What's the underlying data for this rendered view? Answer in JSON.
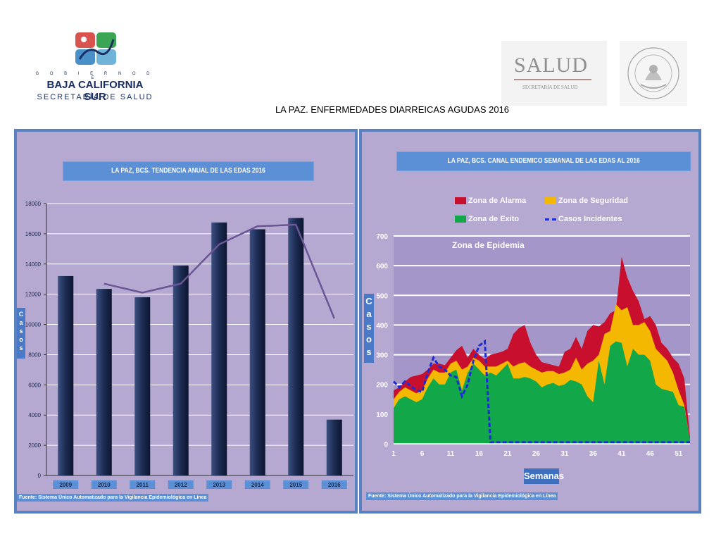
{
  "header": {
    "left_logo": {
      "gobierno": "G O B I E R N O   D E",
      "state": "BAJA CALIFORNIA SUR",
      "secretaria": "SECRETARÍA DE SALUD"
    },
    "right_logo": {
      "salud": "SALUD",
      "secretaria": "SECRETARÍA DE SALUD",
      "seal": "ESTADOS UNIDOS MEXICANOS"
    },
    "page_title": "LA PAZ. ENFERMEDADES DIARREICAS  AGUDAS 2016"
  },
  "colors": {
    "panel_bg": "#b5a8d1",
    "panel_border": "#5a82c0",
    "bar": "#1c2b52",
    "trend_line": "#6a5596",
    "alarma": "#c8102e",
    "seguridad": "#f4b800",
    "exito": "#12a84a",
    "incidentes": "#1d2bd6",
    "label_box": "#5b8fd6"
  },
  "chart_data": [
    {
      "type": "bar",
      "title": "LA PAZ,  BCS. TENDENCIA ANUAL DE LAS EDAS  2016",
      "ylabel": "C a s o s",
      "ylim": [
        0,
        18000
      ],
      "yticks": [
        "0",
        "2000",
        "4000",
        "6000",
        "8000",
        "10000",
        "12000",
        "14000",
        "16000",
        "18000"
      ],
      "categories": [
        "2009",
        "2010",
        "2011",
        "2012",
        "2013",
        "2014",
        "2015",
        "2016"
      ],
      "values": [
        13200,
        12350,
        11800,
        13900,
        16750,
        16300,
        17050,
        3700
      ],
      "trend": {
        "x": [
          "2010",
          "2011",
          "2012",
          "2013",
          "2014",
          "2015",
          "2016"
        ],
        "values": [
          12700,
          12100,
          12700,
          15300,
          16500,
          16600,
          10400
        ]
      },
      "source": "Fuente: Sistema Único Automatizado  para la Vigilancia Epidemiológica en Línea"
    },
    {
      "type": "area",
      "title": "LA PAZ, BCS. CANAL ENDEMICO SEMANAL DE LAS EDAS  AL 2016",
      "ylabel": "C a s o s",
      "xlabel": "Semanas",
      "ylim": [
        0,
        700
      ],
      "yticks": [
        "0",
        "100",
        "200",
        "300",
        "400",
        "500",
        "600",
        "700"
      ],
      "xticks": [
        "1",
        "6",
        "11",
        "16",
        "21",
        "26",
        "31",
        "36",
        "41",
        "46",
        "51"
      ],
      "zone_label": "Zona de Epidemia",
      "legend": [
        "Zona de Alarma",
        "Zona de Seguridad",
        "Zona de Exito",
        "Casos Incidentes"
      ],
      "weeks": [
        1,
        2,
        3,
        4,
        5,
        6,
        7,
        8,
        9,
        10,
        11,
        12,
        13,
        14,
        15,
        16,
        17,
        18,
        19,
        20,
        21,
        22,
        23,
        24,
        25,
        26,
        27,
        28,
        29,
        30,
        31,
        32,
        33,
        34,
        35,
        36,
        37,
        38,
        39,
        40,
        41,
        42,
        43,
        44,
        45,
        46,
        47,
        48,
        49,
        50,
        51,
        52,
        53
      ],
      "series": [
        {
          "name": "Zona de Exito",
          "values": [
            120,
            150,
            160,
            150,
            140,
            150,
            190,
            220,
            200,
            200,
            240,
            250,
            180,
            240,
            270,
            250,
            230,
            240,
            230,
            250,
            270,
            220,
            220,
            225,
            220,
            210,
            190,
            200,
            205,
            195,
            200,
            215,
            210,
            200,
            160,
            140,
            280,
            200,
            330,
            345,
            340,
            260,
            320,
            300,
            300,
            280,
            200,
            185,
            180,
            175,
            130,
            125,
            10
          ]
        },
        {
          "name": "Zona de Seguridad",
          "values": [
            150,
            175,
            190,
            180,
            170,
            180,
            220,
            250,
            240,
            240,
            270,
            280,
            250,
            260,
            290,
            280,
            260,
            260,
            260,
            270,
            280,
            260,
            270,
            275,
            260,
            250,
            240,
            245,
            245,
            235,
            240,
            250,
            290,
            250,
            270,
            280,
            300,
            370,
            380,
            470,
            450,
            460,
            400,
            400,
            410,
            380,
            320,
            300,
            280,
            240,
            180,
            130,
            10
          ]
        },
        {
          "name": "Zona de Alarma",
          "values": [
            180,
            190,
            210,
            225,
            230,
            235,
            250,
            270,
            270,
            265,
            290,
            315,
            330,
            290,
            320,
            300,
            285,
            300,
            305,
            310,
            320,
            370,
            390,
            400,
            340,
            300,
            275,
            270,
            265,
            260,
            310,
            320,
            360,
            320,
            380,
            400,
            395,
            410,
            440,
            450,
            630,
            560,
            515,
            480,
            420,
            430,
            400,
            340,
            320,
            290,
            270,
            220,
            20
          ]
        },
        {
          "name": "Casos Incidentes",
          "values": [
            210,
            190,
            210,
            195,
            180,
            175,
            240,
            290,
            260,
            250,
            230,
            225,
            160,
            200,
            280,
            330,
            345,
            5,
            5,
            5,
            5,
            5,
            5,
            5,
            5,
            5,
            5,
            5,
            5,
            5,
            5,
            5,
            5,
            5,
            5,
            5,
            5,
            5,
            5,
            5,
            5,
            5,
            5,
            5,
            5,
            5,
            5,
            5,
            5,
            5,
            5,
            5,
            5
          ]
        }
      ],
      "source": "Fuente: Sistema Único Automatizado para la Vigilancia Epidemiológica en Línea"
    }
  ]
}
